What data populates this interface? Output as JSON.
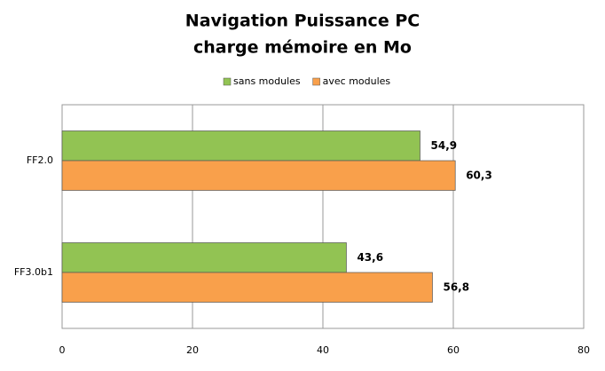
{
  "chart_data": {
    "type": "hbar",
    "title": "Navigation Puissance PC",
    "subtitle": "charge mémoire en Mo",
    "categories": [
      "FF2.0",
      "FF3.0b1"
    ],
    "series": [
      {
        "name": "sans modules",
        "color": "#92c353",
        "values": [
          54.9,
          43.6
        ],
        "value_labels": [
          "54,9",
          "43,6"
        ]
      },
      {
        "name": "avec modules",
        "color": "#f9a04b",
        "values": [
          60.3,
          56.8
        ],
        "value_labels": [
          "60,3",
          "56,8"
        ]
      }
    ],
    "xlim": [
      0,
      80
    ],
    "xticks": [
      0,
      20,
      40,
      60,
      80
    ],
    "grid": true,
    "legend": "top"
  }
}
